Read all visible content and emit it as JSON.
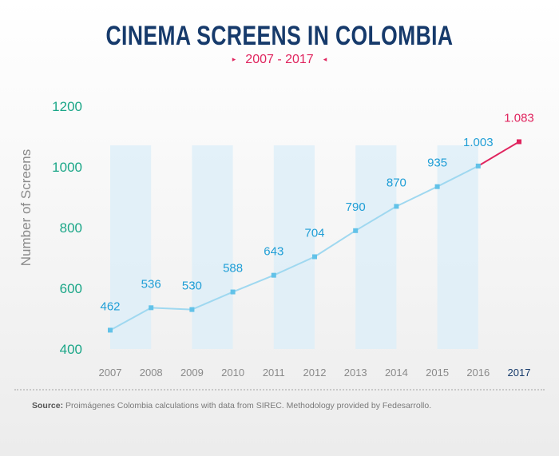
{
  "header": {
    "title": "CINEMA SCREENS IN COLOMBIA",
    "subtitle": "2007 - 2017",
    "arrow_left": "▸",
    "arrow_right": "◂"
  },
  "footer": {
    "source_label": "Source:",
    "source_text": " Proimágenes Colombia calculations with data from SIREC. Methodology provided by Fedesarrollo."
  },
  "colors": {
    "title": "#163a6b",
    "accent": "#e0245e",
    "line": "#9fd8f0",
    "point": "#62c2e8",
    "label": "#1f9ed6",
    "tick_y": "#1aa687",
    "tick_x": "#8a8a8a",
    "band": "#dbeef8"
  },
  "chart_data": {
    "type": "line",
    "title": "CINEMA SCREENS IN COLOMBIA",
    "subtitle": "2007 - 2017",
    "xlabel": "",
    "ylabel": "Number of Screens",
    "x": [
      "2007",
      "2008",
      "2009",
      "2010",
      "2011",
      "2012",
      "2013",
      "2014",
      "2015",
      "2016",
      "2017"
    ],
    "values": [
      462,
      536,
      530,
      588,
      643,
      704,
      790,
      870,
      935,
      1003,
      1083
    ],
    "data_labels": [
      "462",
      "536",
      "530",
      "588",
      "643",
      "704",
      "790",
      "870",
      "935",
      "1.003",
      "1.083"
    ],
    "highlight_index": 10,
    "ylim": [
      400,
      1200
    ],
    "yticks": [
      400,
      600,
      800,
      1000,
      1200
    ],
    "grid": false,
    "legend": "none"
  }
}
